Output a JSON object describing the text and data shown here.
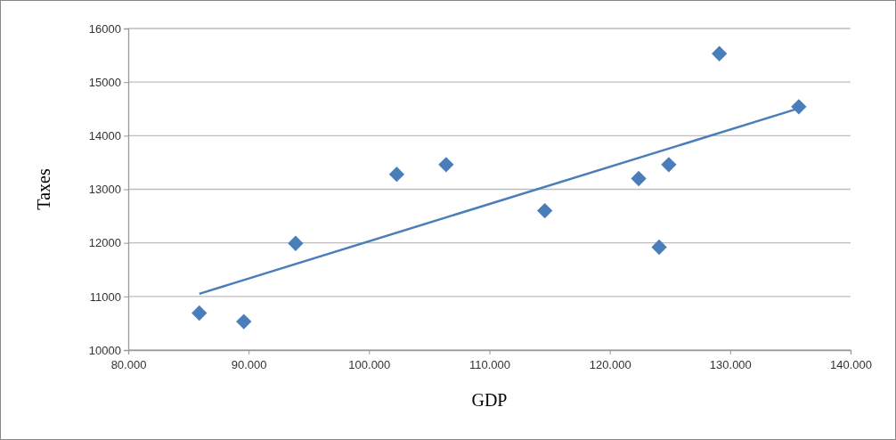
{
  "chart_data": {
    "type": "scatter",
    "xlabel": "GDP",
    "ylabel": "Taxes",
    "xlim": [
      80,
      140
    ],
    "xticks": [
      {
        "value": 80,
        "label": "80.000"
      },
      {
        "value": 90,
        "label": "90.000"
      },
      {
        "value": 100,
        "label": "100.000"
      },
      {
        "value": 110,
        "label": "110.000"
      },
      {
        "value": 120,
        "label": "120.000"
      },
      {
        "value": 130,
        "label": "130.000"
      },
      {
        "value": 140,
        "label": "140.000"
      }
    ],
    "ylim": [
      10000,
      16000
    ],
    "yticks": [
      10000,
      11000,
      12000,
      13000,
      14000,
      15000,
      16000
    ],
    "grid": "y",
    "marker": "diamond",
    "series": [
      {
        "color": "#4a7ebb",
        "x": [
          85.9,
          89.6,
          93.9,
          102.3,
          106.4,
          114.6,
          122.4,
          124.1,
          124.9,
          129.1,
          135.7
        ],
        "values": [
          10690,
          10530,
          11990,
          13280,
          13460,
          12600,
          13200,
          11920,
          13460,
          15530,
          14540
        ]
      },
      {
        "type": "line",
        "marker": "none",
        "line_style": "solid",
        "color": "#4a7ebb",
        "x": [
          85.9,
          135.7
        ],
        "values": [
          11050,
          14510
        ]
      }
    ]
  }
}
